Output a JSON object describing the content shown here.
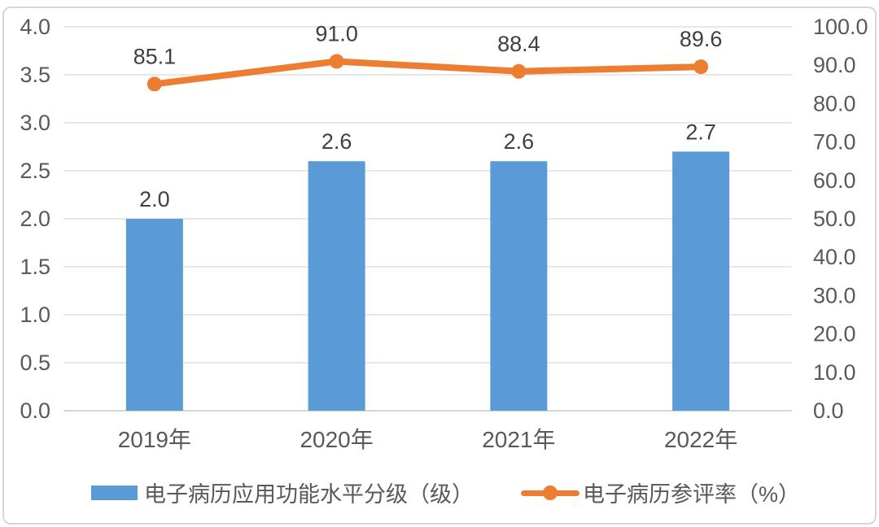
{
  "chart_data": {
    "type": "combo",
    "title": "",
    "categories": [
      "2019年",
      "2020年",
      "2021年",
      "2022年"
    ],
    "series": [
      {
        "name": "电子病历应用功能水平分级（级）",
        "chart_type": "bar",
        "axis": "left",
        "values": [
          2.0,
          2.6,
          2.6,
          2.7
        ],
        "data_labels": [
          "2.0",
          "2.6",
          "2.6",
          "2.7"
        ],
        "color": "#5B9BD5"
      },
      {
        "name": "电子病历参评率（%）",
        "chart_type": "line",
        "axis": "right",
        "values": [
          85.1,
          91.0,
          88.4,
          89.6
        ],
        "data_labels": [
          "85.1",
          "91.0",
          "88.4",
          "89.6"
        ],
        "color": "#ED7D31"
      }
    ],
    "left_axis": {
      "min": 0.0,
      "max": 4.0,
      "step": 0.5,
      "tick_labels": [
        "0.0",
        "0.5",
        "1.0",
        "1.5",
        "2.0",
        "2.5",
        "3.0",
        "3.5",
        "4.0"
      ]
    },
    "right_axis": {
      "min": 0.0,
      "max": 100.0,
      "step": 10.0,
      "tick_labels": [
        "0.0",
        "10.0",
        "20.0",
        "30.0",
        "40.0",
        "50.0",
        "60.0",
        "70.0",
        "80.0",
        "90.0",
        "100.0"
      ]
    },
    "grid": true,
    "legend_position": "bottom",
    "colors": {
      "bar": "#5B9BD5",
      "line": "#ED7D31",
      "gridline": "#D9D9D9",
      "baseline": "#C9C9C9",
      "axis_text": "#595959",
      "data_label": "#404040",
      "category_text": "#595959",
      "frame_border": "#D7D7D7",
      "background": "#FFFFFF"
    }
  }
}
